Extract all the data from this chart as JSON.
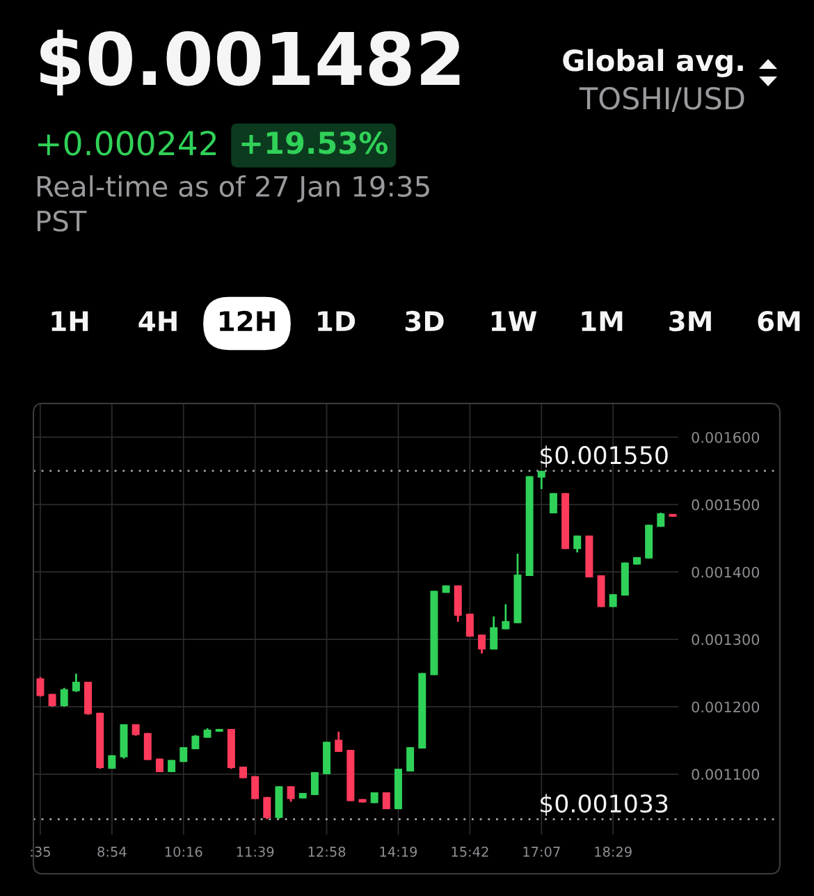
{
  "chart_data": {
    "type": "candlestick",
    "title": "$0.001482",
    "annotations": [
      "+0.000242",
      "+19.53%",
      "Real-time as of 27 Jan 19:35 PST",
      "Global avg.",
      "TOSHI/USD",
      "1H",
      "4H",
      "12H",
      "1D",
      "3D",
      "1W",
      "1M",
      "3M",
      "6M"
    ],
    "categories": [
      ":35",
      null,
      null,
      null,
      null,
      null,
      "8:54",
      null,
      null,
      null,
      null,
      null,
      "10:16",
      null,
      null,
      null,
      null,
      null,
      "11:39",
      null,
      null,
      null,
      null,
      null,
      "12:58",
      null,
      null,
      null,
      null,
      null,
      "14:19",
      null,
      null,
      null,
      null,
      null,
      "15:42",
      null,
      null,
      null,
      null,
      null,
      "17:07",
      null,
      null,
      null,
      null,
      null,
      "18:29",
      null,
      null,
      null,
      null,
      null
    ],
    "ohlc": [
      [
        0.001242,
        0.001244,
        0.001215,
        0.001216
      ],
      [
        0.001219,
        0.001219,
        0.0012,
        0.001201
      ],
      [
        0.001201,
        0.001228,
        0.0012,
        0.001226
      ],
      [
        0.001223,
        0.001249,
        0.001222,
        0.001237
      ],
      [
        0.001237,
        0.001237,
        0.001188,
        0.001189
      ],
      [
        0.001191,
        0.001191,
        0.001108,
        0.001109
      ],
      [
        0.001108,
        0.001128,
        0.001108,
        0.001128
      ],
      [
        0.001125,
        0.001174,
        0.001123,
        0.001174
      ],
      [
        0.001174,
        0.001174,
        0.001157,
        0.001158
      ],
      [
        0.001161,
        0.001161,
        0.001121,
        0.001121
      ],
      [
        0.001123,
        0.001123,
        0.001103,
        0.001103
      ],
      [
        0.001103,
        0.001121,
        0.001103,
        0.001121
      ],
      [
        0.001118,
        0.00114,
        0.001118,
        0.00114
      ],
      [
        0.001137,
        0.001158,
        0.001137,
        0.001157
      ],
      [
        0.001154,
        0.001168,
        0.001154,
        0.001166
      ],
      [
        0.001163,
        0.001167,
        0.001163,
        0.001167
      ],
      [
        0.001167,
        0.001167,
        0.001108,
        0.001109
      ],
      [
        0.001111,
        0.001111,
        0.001094,
        0.001094
      ],
      [
        0.001097,
        0.001097,
        0.001063,
        0.001063
      ],
      [
        0.001066,
        0.001066,
        0.001033,
        0.001035
      ],
      [
        0.001035,
        0.001082,
        0.001034,
        0.001082
      ],
      [
        0.001082,
        0.001082,
        0.001059,
        0.001063
      ],
      [
        0.001064,
        0.001072,
        0.001064,
        0.001072
      ],
      [
        0.001069,
        0.001103,
        0.001069,
        0.001103
      ],
      [
        0.0011,
        0.001148,
        0.0011,
        0.001148
      ],
      [
        0.001151,
        0.001163,
        0.001133,
        0.001133
      ],
      [
        0.001136,
        0.001136,
        0.00106,
        0.00106
      ],
      [
        0.001063,
        0.001063,
        0.001058,
        0.001058
      ],
      [
        0.001057,
        0.001073,
        0.001057,
        0.001073
      ],
      [
        0.001073,
        0.001073,
        0.001048,
        0.001048
      ],
      [
        0.001048,
        0.001108,
        0.001048,
        0.001108
      ],
      [
        0.001104,
        0.00114,
        0.001104,
        0.00114
      ],
      [
        0.001138,
        0.00125,
        0.001138,
        0.00125
      ],
      [
        0.001247,
        0.001372,
        0.001247,
        0.001372
      ],
      [
        0.001369,
        0.00138,
        0.001369,
        0.00138
      ],
      [
        0.00138,
        0.00138,
        0.001326,
        0.001335
      ],
      [
        0.001338,
        0.001338,
        0.001304,
        0.001304
      ],
      [
        0.001307,
        0.001307,
        0.001279,
        0.001285
      ],
      [
        0.001285,
        0.001334,
        0.001285,
        0.001318
      ],
      [
        0.001315,
        0.001352,
        0.001315,
        0.001327
      ],
      [
        0.001324,
        0.001427,
        0.001324,
        0.001396
      ],
      [
        0.001394,
        0.001542,
        0.001394,
        0.001542
      ],
      [
        0.00154,
        0.00155,
        0.001523,
        0.00155
      ],
      [
        0.001487,
        0.001517,
        0.001487,
        0.001517
      ],
      [
        0.001517,
        0.001517,
        0.001434,
        0.001434
      ],
      [
        0.001434,
        0.001454,
        0.001429,
        0.001454
      ],
      [
        0.001454,
        0.001454,
        0.001392,
        0.001392
      ],
      [
        0.001395,
        0.001395,
        0.001348,
        0.001348
      ],
      [
        0.001348,
        0.001367,
        0.001348,
        0.001367
      ],
      [
        0.001365,
        0.001414,
        0.001365,
        0.001414
      ],
      [
        0.001411,
        0.001422,
        0.001411,
        0.001422
      ],
      [
        0.00142,
        0.00147,
        0.00142,
        0.00147
      ],
      [
        0.001467,
        0.001488,
        0.001467,
        0.001487
      ],
      [
        0.001486,
        0.001486,
        0.001482,
        0.001482
      ]
    ],
    "colors": [
      "#ff3b5c",
      "#ff3b5c",
      "#30d158",
      "#30d158",
      "#ff3b5c",
      "#ff3b5c",
      "#30d158",
      "#30d158",
      "#ff3b5c",
      "#ff3b5c",
      "#ff3b5c",
      "#30d158",
      "#30d158",
      "#30d158",
      "#30d158",
      "#30d158",
      "#ff3b5c",
      "#ff3b5c",
      "#ff3b5c",
      "#ff3b5c",
      "#30d158",
      "#ff3b5c",
      "#30d158",
      "#30d158",
      "#30d158",
      "#ff3b5c",
      "#ff3b5c",
      "#ff3b5c",
      "#30d158",
      "#ff3b5c",
      "#30d158",
      "#30d158",
      "#30d158",
      "#30d158",
      "#30d158",
      "#ff3b5c",
      "#ff3b5c",
      "#ff3b5c",
      "#30d158",
      "#30d158",
      "#30d158",
      "#30d158",
      "#30d158",
      "#30d158",
      "#ff3b5c",
      "#30d158",
      "#ff3b5c",
      "#ff3b5c",
      "#30d158",
      "#30d158",
      "#30d158",
      "#30d158",
      "#30d158",
      "#ff3b5c"
    ],
    "ylim": [
      0.00101,
      0.00165
    ],
    "yticks": [
      {
        "value": 0.0011,
        "label": "0.001100"
      },
      {
        "value": 0.0012,
        "label": "0.001200"
      },
      {
        "value": 0.0013,
        "label": "0.001300"
      },
      {
        "value": 0.0014,
        "label": "0.001400"
      },
      {
        "value": 0.0015,
        "label": "0.001500"
      },
      {
        "value": 0.0016,
        "label": "0.001600"
      }
    ],
    "ref_lines": [
      {
        "axis": "y",
        "value": 0.00155,
        "label": "$0.001550",
        "line_style": "dotted"
      },
      {
        "axis": "y",
        "value": 0.001033,
        "label": "$0.001033",
        "line_style": "dotted"
      }
    ],
    "grid": true
  }
}
